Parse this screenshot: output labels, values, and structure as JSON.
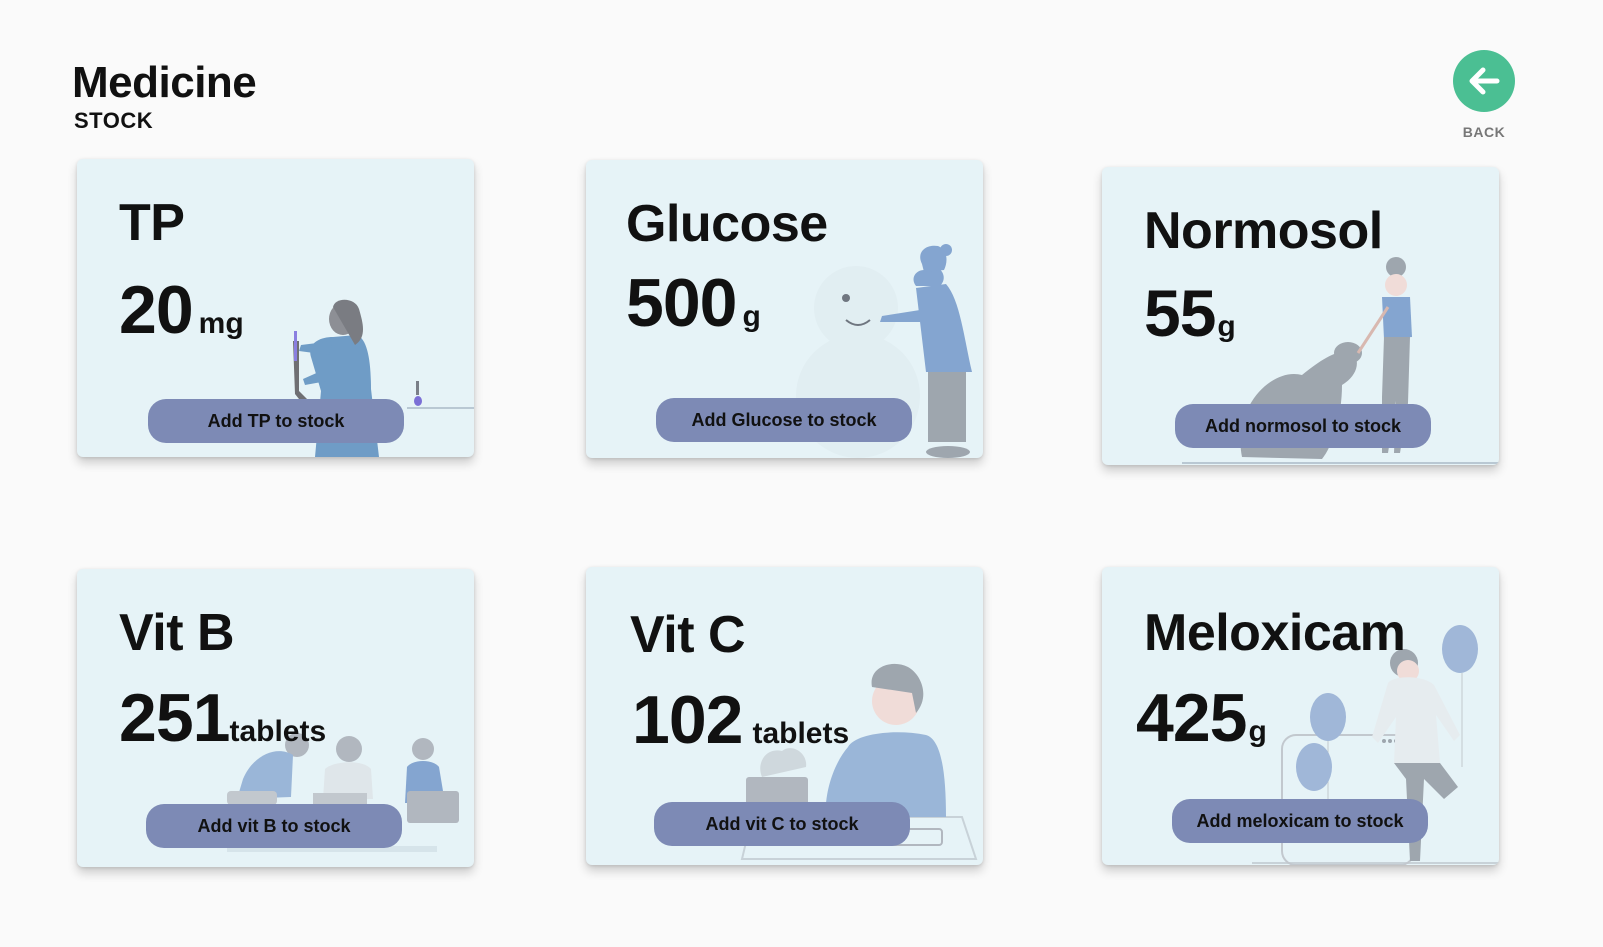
{
  "header": {
    "title": "Medicine",
    "subtitle": "STOCK"
  },
  "back": {
    "label": "BACK",
    "icon": "arrow-left-icon",
    "color": "#4bbf93"
  },
  "button_color": "#7d8ab5",
  "items": [
    {
      "name": "TP",
      "amount": "20",
      "unit": "mg",
      "button_label": "Add TP to stock",
      "illustration": "scientist-illustration"
    },
    {
      "name": "Glucose",
      "amount": "500",
      "unit": "g",
      "button_label": "Add Glucose to stock",
      "illustration": "snowman-illustration"
    },
    {
      "name": "Normosol",
      "amount": "55",
      "unit": "g",
      "button_label": "Add normosol to stock",
      "illustration": "dog-walker-illustration"
    },
    {
      "name": "Vit B",
      "amount": "251",
      "unit": "tablets",
      "button_label": "Add vit B to stock",
      "illustration": "team-illustration"
    },
    {
      "name": "Vit C",
      "amount": "102",
      "unit": "tablets",
      "button_label": "Add vit C to stock",
      "illustration": "desk-worker-illustration"
    },
    {
      "name": "Meloxicam",
      "amount": "425",
      "unit": "g",
      "button_label": "Add meloxicam to stock",
      "illustration": "balloons-illustration"
    }
  ]
}
